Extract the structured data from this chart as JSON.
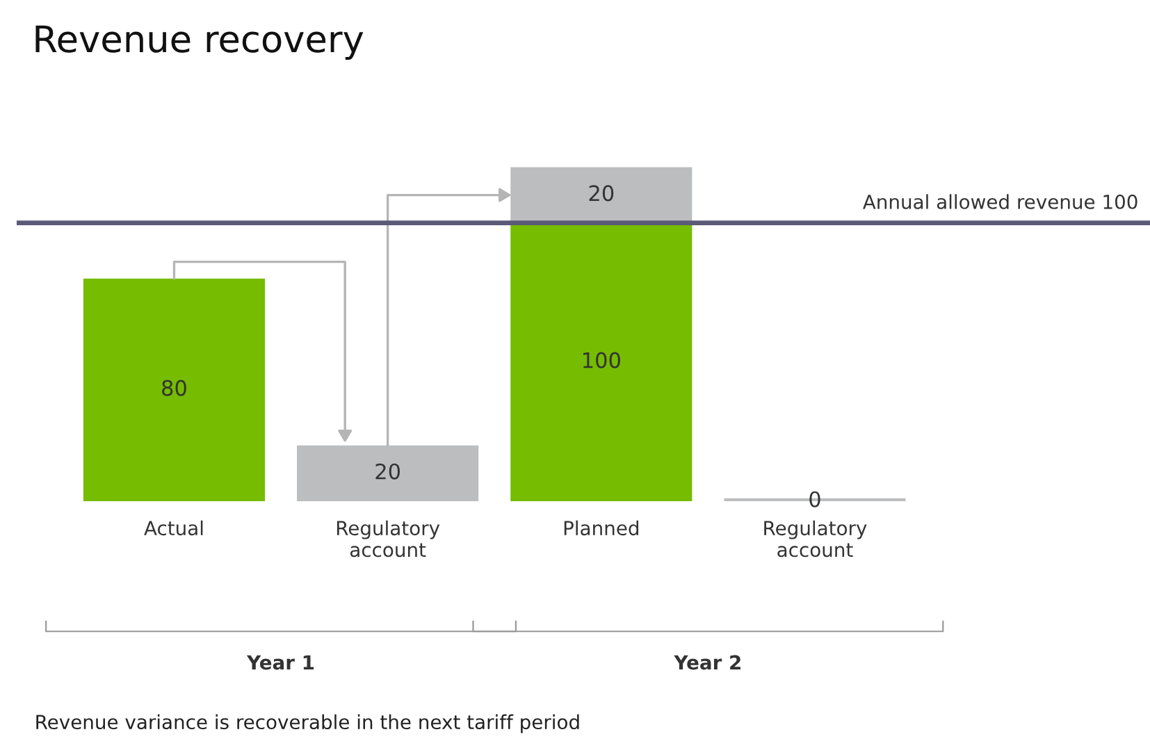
{
  "chart_data": {
    "type": "bar",
    "title": "Revenue recovery",
    "categories": [
      "Actual",
      "Regulatory\naccount",
      "Planned",
      "Regulatory\naccount"
    ],
    "stacked": true,
    "series": [
      {
        "color": "#76bc00",
        "values": [
          80,
          null,
          100,
          null
        ]
      },
      {
        "color": "#bcbdbf",
        "values": [
          null,
          20,
          20,
          0
        ]
      }
    ],
    "data_labels": true,
    "legend": false,
    "grid": false,
    "tick_labels": "x",
    "ref_lines": [
      {
        "axis": "y",
        "value": 100,
        "label": "Annual allowed revenue 100",
        "color": "#5b5b78"
      }
    ],
    "annotations": [
      "Year 1",
      "Year 2",
      "Revenue variance is recoverable in the next tariff period"
    ]
  }
}
